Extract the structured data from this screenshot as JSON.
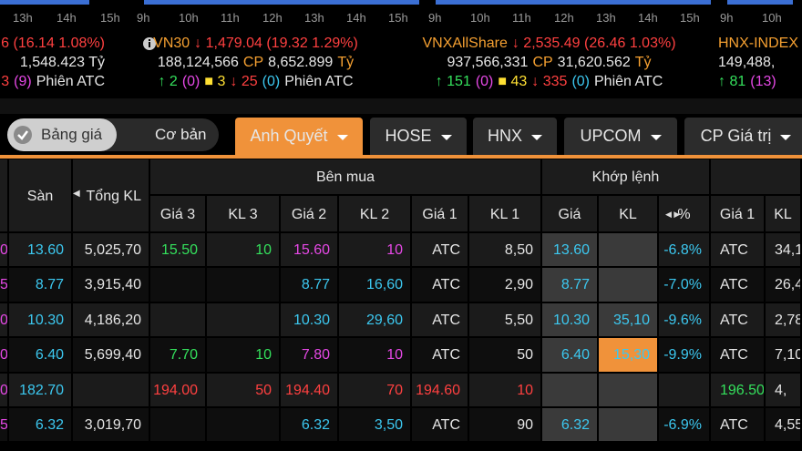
{
  "mini_charts": [
    {
      "hours": [
        "13h",
        "14h",
        "15h"
      ]
    },
    {
      "hours": [
        "9h",
        "10h",
        "11h",
        "12h",
        "13h",
        "14h",
        "15h"
      ]
    },
    {
      "hours": [
        "9h",
        "10h",
        "11h",
        "12h",
        "13h",
        "14h",
        "15h"
      ]
    },
    {
      "hours": [
        "9h",
        "10h"
      ]
    }
  ],
  "indices": [
    {
      "lines": [
        [
          {
            "text": "6 (16.14 1.08%)",
            "color": "#ff4040"
          }
        ],
        [
          {
            "text": "1,548.423 Tỷ",
            "color": "#e6e6e6"
          }
        ],
        [
          {
            "text": "3",
            "color": "#ff4040"
          },
          {
            "text": "(9)",
            "color": "#e648e6"
          },
          {
            "text": "Phiên ATC",
            "color": "#e6e6e6"
          }
        ]
      ]
    },
    {
      "lines": [
        [
          {
            "text": "VN30",
            "color": "#f5a031"
          },
          {
            "text": "↓ 1,479.04 (19.32 1.29%)",
            "color": "#ff4040"
          }
        ],
        [
          {
            "text": "188,124,566",
            "color": "#e6e6e6"
          },
          {
            "text": "CP",
            "color": "#f5a031"
          },
          {
            "text": "8,652.899",
            "color": "#e6e6e6"
          },
          {
            "text": "Tỷ",
            "color": "#f5a031"
          }
        ],
        [
          {
            "text": "↑ 2",
            "color": "#34e05c"
          },
          {
            "text": "(0)",
            "color": "#e648e6"
          },
          {
            "text": "■ 3",
            "color": "#ffe033"
          },
          {
            "text": "↓ 25",
            "color": "#ff4040"
          },
          {
            "text": "(0)",
            "color": "#3cc8f0"
          },
          {
            "text": "Phiên ATC",
            "color": "#e6e6e6"
          }
        ]
      ]
    },
    {
      "lines": [
        [
          {
            "text": "VNXAllShare",
            "color": "#f5a031"
          },
          {
            "text": "↓ 2,535.49 (26.46 1.03%)",
            "color": "#ff4040"
          }
        ],
        [
          {
            "text": "937,566,331",
            "color": "#e6e6e6"
          },
          {
            "text": "CP",
            "color": "#f5a031"
          },
          {
            "text": "31,620.562",
            "color": "#e6e6e6"
          },
          {
            "text": "Tỷ",
            "color": "#f5a031"
          }
        ],
        [
          {
            "text": "↑ 151",
            "color": "#34e05c"
          },
          {
            "text": "(0)",
            "color": "#e648e6"
          },
          {
            "text": "■ 43",
            "color": "#ffe033"
          },
          {
            "text": "↓ 335",
            "color": "#ff4040"
          },
          {
            "text": "(0)",
            "color": "#3cc8f0"
          },
          {
            "text": "Phiên ATC",
            "color": "#e6e6e6"
          }
        ]
      ]
    },
    {
      "lines": [
        [
          {
            "text": "HNX-INDEX",
            "color": "#f5a031"
          }
        ],
        [
          {
            "text": "149,488,",
            "color": "#e6e6e6"
          }
        ],
        [
          {
            "text": "↑ 81",
            "color": "#34e05c"
          },
          {
            "text": "(13)",
            "color": "#e648e6"
          }
        ]
      ]
    }
  ],
  "toggle": [
    "Bảng giá",
    "Cơ bản"
  ],
  "tabs": [
    "Anh Quyết",
    "HOSE",
    "HNX",
    "UPCOM",
    "CP Giá trị"
  ],
  "active_tab": 0,
  "header": {
    "san": "Sàn",
    "tong_kl": "Tổng KL",
    "ben_mua": "Bên mua",
    "khop_lenh": "Khớp lệnh",
    "sub": [
      "Giá 3",
      "KL 3",
      "Giá 2",
      "KL 2",
      "Giá 1",
      "KL 1",
      "Giá",
      "KL",
      "%",
      "Giá 1",
      "KL"
    ]
  },
  "rows": [
    [
      {
        "text": "0",
        "color": "#e648e6"
      },
      {
        "text": "13.60",
        "color": "#3cc8f0"
      },
      {
        "text": "5,025,70",
        "color": "#e6e6e6"
      },
      {
        "text": "15.50",
        "color": "#34e05c"
      },
      {
        "text": "10",
        "color": "#34e05c"
      },
      {
        "text": "15.60",
        "color": "#e648e6"
      },
      {
        "text": "10",
        "color": "#e648e6"
      },
      {
        "text": "ATC",
        "color": "#e6e6e6"
      },
      {
        "text": "8,50",
        "color": "#e6e6e6"
      },
      {
        "text": "13.60",
        "color": "#3cc8f0"
      },
      null,
      {
        "text": "-6.8%",
        "color": "#3cc8f0"
      },
      {
        "text": "ATC",
        "color": "#e6e6e6"
      },
      {
        "text": "34,1",
        "color": "#e6e6e6"
      }
    ],
    [
      {
        "text": "5",
        "color": "#e648e6"
      },
      {
        "text": "8.77",
        "color": "#3cc8f0"
      },
      {
        "text": "3,915,40",
        "color": "#e6e6e6"
      },
      null,
      null,
      {
        "text": "8.77",
        "color": "#3cc8f0"
      },
      {
        "text": "16,60",
        "color": "#3cc8f0"
      },
      {
        "text": "ATC",
        "color": "#e6e6e6"
      },
      {
        "text": "2,90",
        "color": "#e6e6e6"
      },
      {
        "text": "8.77",
        "color": "#3cc8f0"
      },
      null,
      {
        "text": "-7.0%",
        "color": "#3cc8f0"
      },
      {
        "text": "ATC",
        "color": "#e6e6e6"
      },
      {
        "text": "26,4",
        "color": "#e6e6e6"
      }
    ],
    [
      {
        "text": "0",
        "color": "#e648e6"
      },
      {
        "text": "10.30",
        "color": "#3cc8f0"
      },
      {
        "text": "4,186,20",
        "color": "#e6e6e6"
      },
      null,
      null,
      {
        "text": "10.30",
        "color": "#3cc8f0"
      },
      {
        "text": "29,60",
        "color": "#3cc8f0"
      },
      {
        "text": "ATC",
        "color": "#e6e6e6"
      },
      {
        "text": "5,50",
        "color": "#e6e6e6"
      },
      {
        "text": "10.30",
        "color": "#3cc8f0"
      },
      {
        "text": "35,10",
        "color": "#3cc8f0"
      },
      {
        "text": "-9.6%",
        "color": "#3cc8f0"
      },
      {
        "text": "ATC",
        "color": "#e6e6e6"
      },
      {
        "text": "2,78",
        "color": "#e6e6e6"
      }
    ],
    [
      {
        "text": "0",
        "color": "#e648e6"
      },
      {
        "text": "6.40",
        "color": "#3cc8f0"
      },
      {
        "text": "5,699,40",
        "color": "#e6e6e6"
      },
      {
        "text": "7.70",
        "color": "#34e05c"
      },
      {
        "text": "10",
        "color": "#34e05c"
      },
      {
        "text": "7.80",
        "color": "#e648e6"
      },
      {
        "text": "10",
        "color": "#e648e6"
      },
      {
        "text": "ATC",
        "color": "#e6e6e6"
      },
      {
        "text": "50",
        "color": "#e6e6e6"
      },
      {
        "text": "6.40",
        "color": "#3cc8f0"
      },
      {
        "text": "15,30",
        "color": "#3cc8f0",
        "bg": "#f0923a"
      },
      {
        "text": "-9.9%",
        "color": "#3cc8f0"
      },
      {
        "text": "ATC",
        "color": "#e6e6e6"
      },
      {
        "text": "7,10",
        "color": "#e6e6e6"
      }
    ],
    [
      {
        "text": "0",
        "color": "#e648e6"
      },
      {
        "text": "182.70",
        "color": "#3cc8f0"
      },
      null,
      {
        "text": "194.00",
        "color": "#ff4040"
      },
      {
        "text": "50",
        "color": "#ff4040"
      },
      {
        "text": "194.40",
        "color": "#ff4040"
      },
      {
        "text": "70",
        "color": "#ff4040"
      },
      {
        "text": "194.60",
        "color": "#ff4040"
      },
      {
        "text": "10",
        "color": "#ff4040"
      },
      null,
      null,
      null,
      {
        "text": "196.50",
        "color": "#34e05c"
      },
      {
        "text": "4,",
        "color": "#e6e6e6"
      }
    ],
    [
      {
        "text": "5",
        "color": "#e648e6"
      },
      {
        "text": "6.32",
        "color": "#3cc8f0"
      },
      {
        "text": "3,019,70",
        "color": "#e6e6e6"
      },
      null,
      null,
      {
        "text": "6.32",
        "color": "#3cc8f0"
      },
      {
        "text": "3,50",
        "color": "#3cc8f0"
      },
      {
        "text": "ATC",
        "color": "#e6e6e6"
      },
      {
        "text": "90",
        "color": "#e6e6e6"
      },
      {
        "text": "6.32",
        "color": "#3cc8f0"
      },
      null,
      {
        "text": "-6.9%",
        "color": "#3cc8f0"
      },
      {
        "text": "ATC",
        "color": "#e6e6e6"
      },
      {
        "text": "4,55",
        "color": "#e6e6e6"
      }
    ]
  ]
}
